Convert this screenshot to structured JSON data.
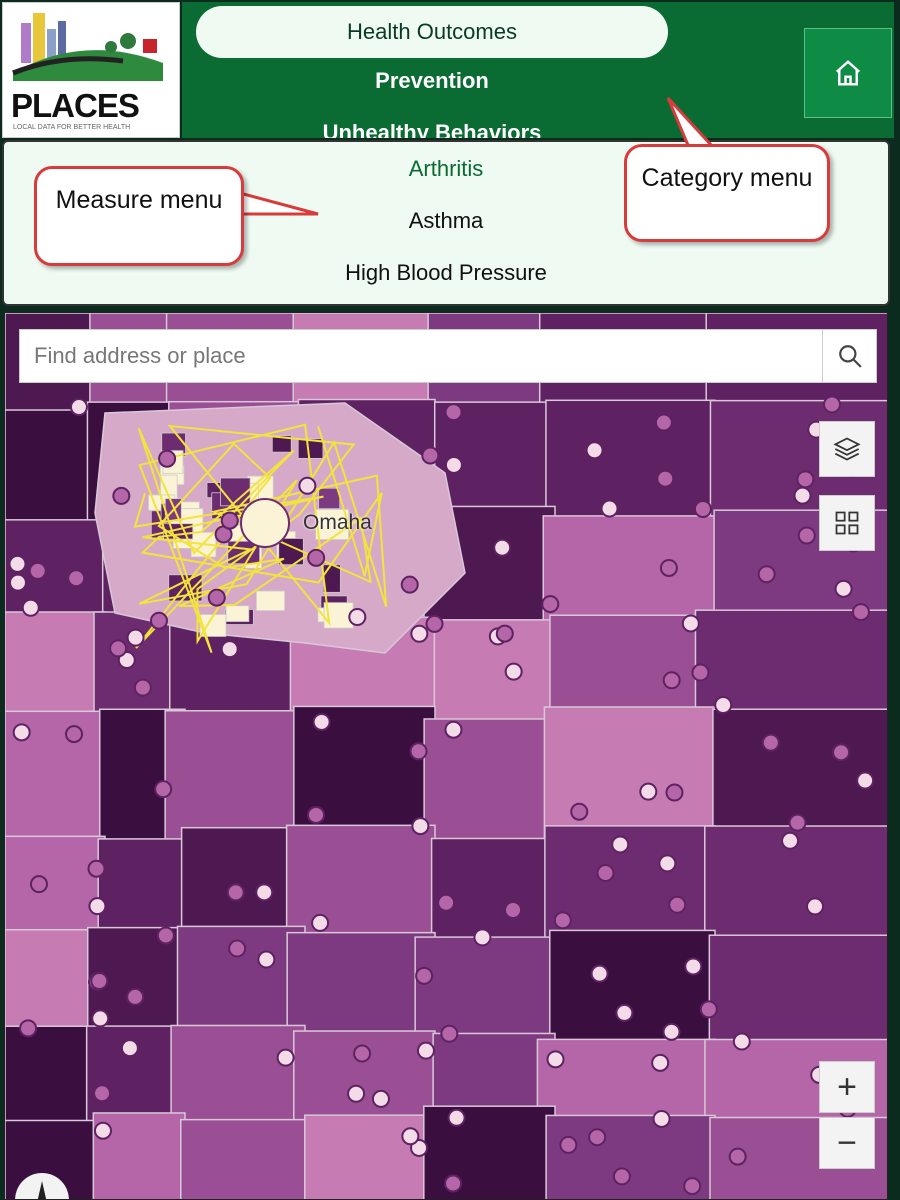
{
  "logo": {
    "text": "PLACES",
    "tagline": "LOCAL DATA FOR BETTER HEALTH"
  },
  "category_menu": {
    "items": [
      "Health Outcomes",
      "Prevention",
      "Unhealthy Behaviors"
    ],
    "selected": "Health Outcomes"
  },
  "home_button": {
    "icon": "home-icon"
  },
  "measure_menu": {
    "items": [
      "Arthritis",
      "Asthma",
      "High Blood Pressure"
    ],
    "selected": "Arthritis"
  },
  "annotations": {
    "measure": "Measure menu",
    "category": "Category menu"
  },
  "map": {
    "search": {
      "placeholder": "Find address or place",
      "icon": "search-icon"
    },
    "city_label": "Omaha",
    "buttons": {
      "layers": "layers-icon",
      "basemap": "basemap-gallery-icon",
      "zoom_in": "+",
      "zoom_out": "−"
    },
    "colors": {
      "light": "#fbf3d6",
      "mid": "#c67bb3",
      "dark": "#4e1850",
      "boundary": "#f2e43a"
    }
  }
}
